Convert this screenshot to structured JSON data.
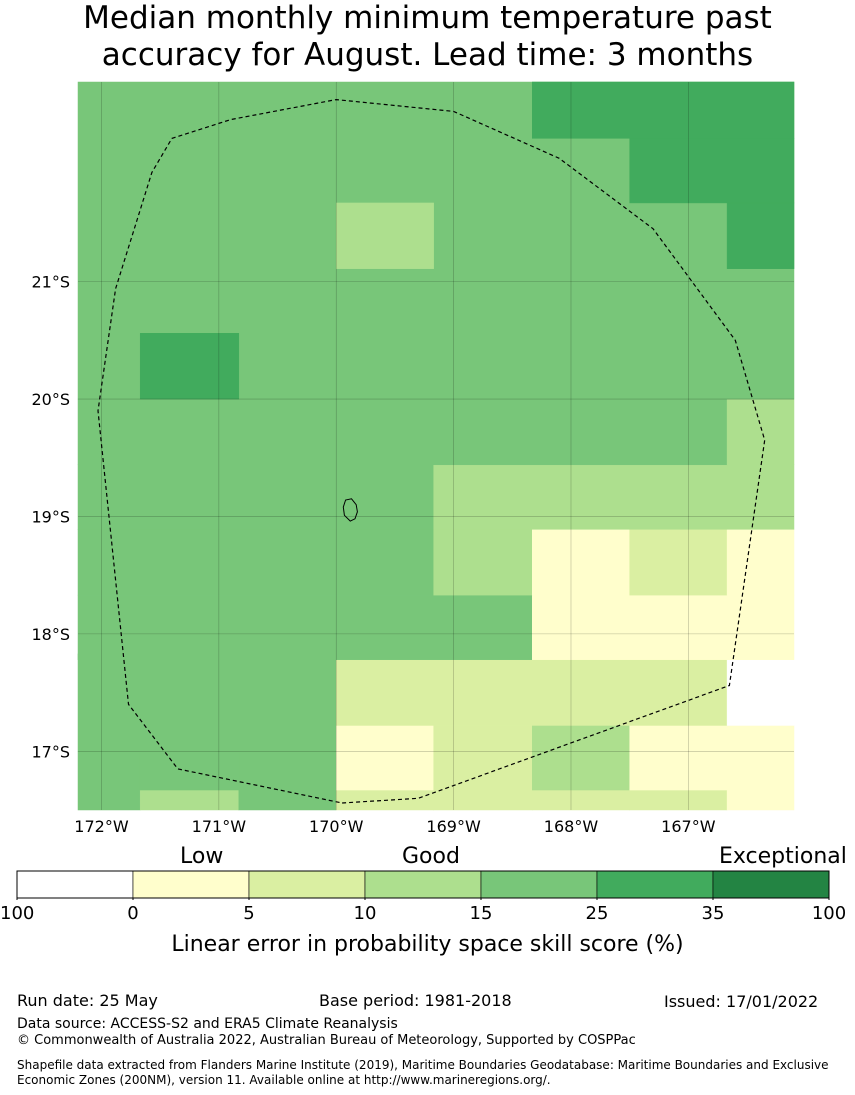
{
  "title_line1": "Median monthly minimum temperature past",
  "title_line2": "accuracy for August. Lead time: 3 months",
  "map": {
    "lon_range": [
      -172.2,
      -166.1
    ],
    "lat_range": [
      -22.7,
      -16.5
    ],
    "grid_cells": [
      {
        "lon0": -172.2,
        "lon1": -171.67,
        "lat0": -16.5,
        "lat1": -17.0,
        "cat": 4
      },
      {
        "lon0": -171.67,
        "lon1": -170.83,
        "lat0": -16.5,
        "lat1": -16.67,
        "cat": 3
      },
      {
        "lon0": -171.67,
        "lon1": -170.83,
        "lat0": -16.67,
        "lat1": -17.0,
        "cat": 4
      },
      {
        "lon0": -170.83,
        "lon1": -170.0,
        "lat0": -16.5,
        "lat1": -17.0,
        "cat": 4
      },
      {
        "lon0": -172.2,
        "lon1": -170.0,
        "lat0": -17.0,
        "lat1": -17.83,
        "cat": 4
      },
      {
        "lon0": -170.0,
        "lon1": -169.17,
        "lat0": -16.5,
        "lat1": -16.67,
        "cat": 2
      },
      {
        "lon0": -170.0,
        "lon1": -169.17,
        "lat0": -16.67,
        "lat1": -17.22,
        "cat": 1
      },
      {
        "lon0": -169.17,
        "lon1": -168.33,
        "lat0": -16.5,
        "lat1": -17.22,
        "cat": 2
      },
      {
        "lon0": -168.33,
        "lon1": -167.5,
        "lat0": -16.5,
        "lat1": -16.67,
        "cat": 2
      },
      {
        "lon0": -168.33,
        "lon1": -167.5,
        "lat0": -16.67,
        "lat1": -17.22,
        "cat": 3
      },
      {
        "lon0": -167.5,
        "lon1": -166.67,
        "lat0": -16.5,
        "lat1": -16.67,
        "cat": 2
      },
      {
        "lon0": -167.5,
        "lon1": -166.67,
        "lat0": -16.67,
        "lat1": -17.22,
        "cat": 1
      },
      {
        "lon0": -166.67,
        "lon1": -166.1,
        "lat0": -16.5,
        "lat1": -17.22,
        "cat": 1
      },
      {
        "lon0": -170.0,
        "lon1": -166.67,
        "lat0": -17.22,
        "lat1": -17.78,
        "cat": 2
      },
      {
        "lon0": -166.67,
        "lon1": -166.1,
        "lat0": -17.22,
        "lat1": -17.78,
        "cat": 0
      },
      {
        "lon0": -172.2,
        "lon1": -168.33,
        "lat0": -17.78,
        "lat1": -18.33,
        "cat": 4
      },
      {
        "lon0": -168.33,
        "lon1": -166.1,
        "lat0": -17.78,
        "lat1": -18.33,
        "cat": 1
      },
      {
        "lon0": -172.2,
        "lon1": -169.17,
        "lat0": -18.33,
        "lat1": -18.89,
        "cat": 4
      },
      {
        "lon0": -169.17,
        "lon1": -168.33,
        "lat0": -18.33,
        "lat1": -18.89,
        "cat": 3
      },
      {
        "lon0": -168.33,
        "lon1": -167.5,
        "lat0": -18.33,
        "lat1": -18.89,
        "cat": 1
      },
      {
        "lon0": -167.5,
        "lon1": -166.67,
        "lat0": -18.33,
        "lat1": -18.89,
        "cat": 2
      },
      {
        "lon0": -166.67,
        "lon1": -166.1,
        "lat0": -18.33,
        "lat1": -18.89,
        "cat": 1
      },
      {
        "lon0": -172.2,
        "lon1": -169.17,
        "lat0": -18.89,
        "lat1": -19.44,
        "cat": 4
      },
      {
        "lon0": -169.17,
        "lon1": -166.1,
        "lat0": -18.89,
        "lat1": -19.44,
        "cat": 3
      },
      {
        "lon0": -172.2,
        "lon1": -166.67,
        "lat0": -19.44,
        "lat1": -20.0,
        "cat": 4
      },
      {
        "lon0": -166.67,
        "lon1": -166.1,
        "lat0": -19.44,
        "lat1": -20.0,
        "cat": 3
      },
      {
        "lon0": -172.2,
        "lon1": -166.1,
        "lat0": -20.0,
        "lat1": -22.7,
        "cat": 4
      },
      {
        "lon0": -171.67,
        "lon1": -170.83,
        "lat0": -20.0,
        "lat1": -20.56,
        "cat": 5
      },
      {
        "lon0": -170.0,
        "lon1": -169.17,
        "lat0": -21.11,
        "lat1": -21.67,
        "cat": 3
      },
      {
        "lon0": -166.67,
        "lon1": -166.1,
        "lat0": -21.11,
        "lat1": -21.67,
        "cat": 5
      },
      {
        "lon0": -167.5,
        "lon1": -166.1,
        "lat0": -21.67,
        "lat1": -22.22,
        "cat": 5
      },
      {
        "lon0": -168.33,
        "lon1": -166.1,
        "lat0": -22.22,
        "lat1": -22.7,
        "cat": 5
      }
    ],
    "eez_boundary": [
      [
        -169.95,
        -16.56
      ],
      [
        -169.3,
        -16.6
      ],
      [
        -166.65,
        -17.56
      ],
      [
        -166.35,
        -19.65
      ],
      [
        -166.6,
        -20.5
      ],
      [
        -167.3,
        -21.45
      ],
      [
        -168.1,
        -22.05
      ],
      [
        -169.0,
        -22.45
      ],
      [
        -170.0,
        -22.55
      ],
      [
        -170.9,
        -22.38
      ],
      [
        -171.4,
        -22.22
      ],
      [
        -171.57,
        -21.93
      ],
      [
        -171.88,
        -20.94
      ],
      [
        -172.03,
        -19.9
      ],
      [
        -171.77,
        -17.4
      ],
      [
        -171.35,
        -16.85
      ],
      [
        -169.95,
        -16.56
      ]
    ],
    "island": [
      [
        -169.88,
        -18.96
      ],
      [
        -169.84,
        -18.98
      ],
      [
        -169.82,
        -19.04
      ],
      [
        -169.83,
        -19.1
      ],
      [
        -169.87,
        -19.15
      ],
      [
        -169.92,
        -19.14
      ],
      [
        -169.94,
        -19.08
      ],
      [
        -169.93,
        -19.01
      ],
      [
        -169.88,
        -18.96
      ]
    ],
    "lon_ticks": [
      {
        "value": -172,
        "label": "172°W"
      },
      {
        "value": -171,
        "label": "171°W"
      },
      {
        "value": -170,
        "label": "170°W"
      },
      {
        "value": -169,
        "label": "169°W"
      },
      {
        "value": -168,
        "label": "168°W"
      },
      {
        "value": -167,
        "label": "167°W"
      }
    ],
    "lat_ticks": [
      {
        "value": -17,
        "label": "17°S"
      },
      {
        "value": -18,
        "label": "18°S"
      },
      {
        "value": -19,
        "label": "19°S"
      },
      {
        "value": -20,
        "label": "20°S"
      },
      {
        "value": -21,
        "label": "21°S"
      }
    ]
  },
  "colorbar": {
    "colors": [
      "#ffffff",
      "#fffecc",
      "#daefa2",
      "#addf8e",
      "#78c679",
      "#41ab5d",
      "#238443"
    ],
    "boundaries": [
      "100",
      "0",
      "5",
      "10",
      "15",
      "25",
      "35",
      "100"
    ],
    "category_labels": [
      "Low",
      "Good",
      "Exceptional"
    ],
    "title": "Linear error in probability space skill score (%)"
  },
  "footer": {
    "run_date": "Run date: 25 May",
    "base_period": "Base period: 1981-2018",
    "issued": "Issued: 17/01/2022",
    "data_source": "Data source: ACCESS-S2 and ERA5 Climate Reanalysis",
    "copyright": "© Commonwealth of Australia 2022, Australian Bureau of Meteorology, Supported by COSPPac",
    "shapefile": "Shapefile data extracted from Flanders Marine Institute (2019), Maritime Boundaries Geodatabase: Maritime Boundaries and Exclusive Economic Zones (200NM), version 11. Available online at http://www.marineregions.org/."
  }
}
